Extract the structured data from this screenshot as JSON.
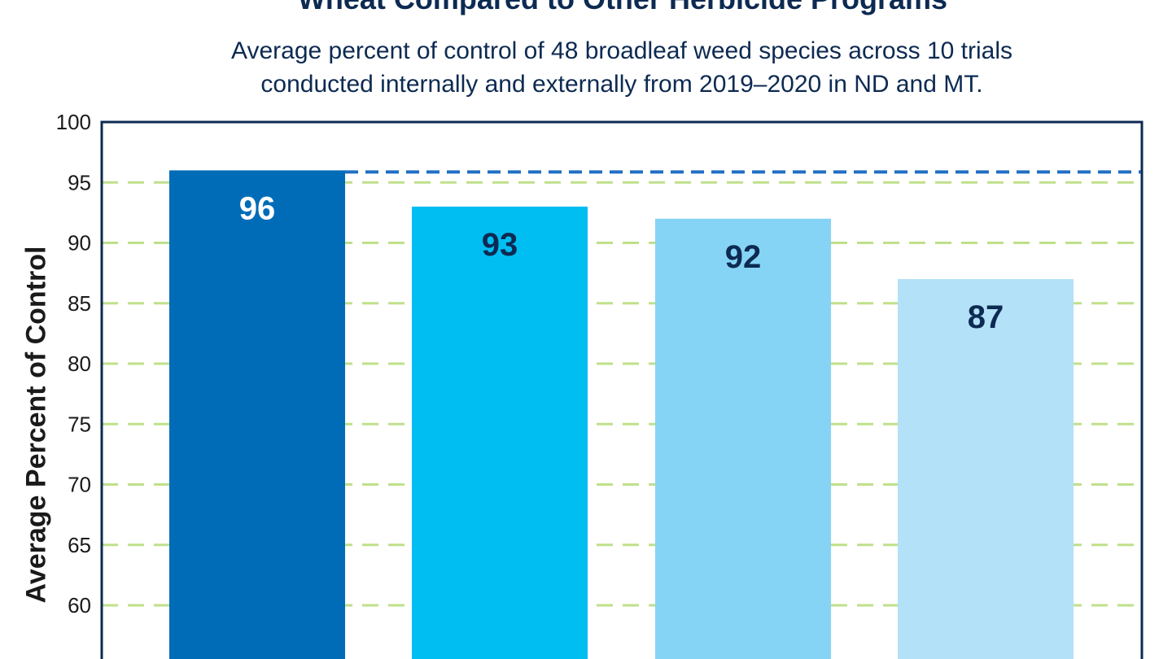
{
  "chart_data": {
    "type": "bar",
    "title": "Wheat Compared to Other Herbicide Programs",
    "subtitle": [
      "Average percent of control of 48 broadleaf weed species across 10 trials",
      "conducted internally and externally from 2019–2020 in ND and MT."
    ],
    "ylabel": "Average Percent of Control",
    "xlabel": "",
    "ylim": [
      55,
      100
    ],
    "yticks": [
      60,
      65,
      70,
      75,
      80,
      85,
      90,
      95,
      100
    ],
    "values": [
      96,
      93,
      92,
      87
    ],
    "labels": [
      "96",
      "93",
      "92",
      "87"
    ],
    "colors": [
      "#006cb7",
      "#00bef2",
      "#86d4f5",
      "#b3e1f7"
    ],
    "label_colors": [
      "#ffffff",
      "#0d2a52",
      "#0d2a52",
      "#0d2a52"
    ],
    "reference_line": {
      "value": 96,
      "color": "#1f6fc4",
      "style": "dashed"
    },
    "grid": {
      "on": true,
      "color": "#bfe08a",
      "style": "dashed"
    },
    "frame_color": "#0d2a52"
  }
}
